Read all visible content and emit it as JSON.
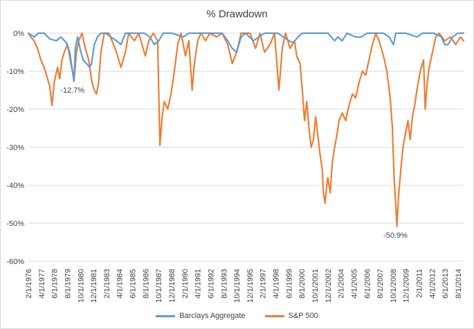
{
  "chart_data": {
    "type": "line",
    "title": "% Drawdown",
    "ylim": [
      -60,
      0
    ],
    "y_ticks": [
      "0%",
      "-10%",
      "-20%",
      "-30%",
      "-40%",
      "-50%",
      "-60%"
    ],
    "x_range": [
      1976.08,
      2015.2
    ],
    "x_tick_labels": [
      "2/1/1976",
      "4/1/1977",
      "6/1/1978",
      "8/1/1979",
      "10/1/1980",
      "12/1/1981",
      "2/1/1983",
      "4/1/1984",
      "6/1/1985",
      "8/1/1986",
      "10/1/1987",
      "12/1/1988",
      "2/1/1990",
      "4/1/1991",
      "6/1/1992",
      "8/1/1993",
      "10/1/1994",
      "12/1/1995",
      "2/1/1997",
      "4/1/1998",
      "6/1/1999",
      "8/1/2000",
      "10/1/2001",
      "12/1/2002",
      "2/1/2004",
      "4/1/2005",
      "6/1/2006",
      "8/1/2007",
      "10/1/2008",
      "12/1/2009",
      "2/1/2011",
      "4/1/2012",
      "6/1/2013",
      "8/1/2014"
    ],
    "grid": true,
    "legend_position": "bottom",
    "series": [
      {
        "name": "Barclays Aggregate",
        "color": "#5b9bd5",
        "points": [
          [
            1976.08,
            0
          ],
          [
            1976.6,
            -1
          ],
          [
            1977.0,
            0
          ],
          [
            1977.5,
            0
          ],
          [
            1978.0,
            -1.5
          ],
          [
            1978.6,
            -2
          ],
          [
            1979.0,
            -1
          ],
          [
            1979.5,
            -2.5
          ],
          [
            1979.8,
            -5
          ],
          [
            1980.0,
            -9
          ],
          [
            1980.17,
            -12.7
          ],
          [
            1980.3,
            -4
          ],
          [
            1980.5,
            -1
          ],
          [
            1980.8,
            -5
          ],
          [
            1981.0,
            -7
          ],
          [
            1981.3,
            -8
          ],
          [
            1981.6,
            -9
          ],
          [
            1981.75,
            -8
          ],
          [
            1982.0,
            -3
          ],
          [
            1982.3,
            -1
          ],
          [
            1982.6,
            0
          ],
          [
            1983.0,
            0
          ],
          [
            1983.5,
            -1
          ],
          [
            1984.0,
            -2
          ],
          [
            1984.4,
            -3
          ],
          [
            1984.8,
            0
          ],
          [
            1985.5,
            0
          ],
          [
            1986.5,
            0
          ],
          [
            1987.0,
            -1
          ],
          [
            1987.4,
            -3
          ],
          [
            1987.8,
            -2
          ],
          [
            1988.2,
            0
          ],
          [
            1989.0,
            0
          ],
          [
            1990.0,
            -1
          ],
          [
            1990.5,
            0
          ],
          [
            1991.5,
            0
          ],
          [
            1992.5,
            0
          ],
          [
            1993.5,
            0
          ],
          [
            1994.0,
            -2
          ],
          [
            1994.4,
            -4
          ],
          [
            1994.8,
            -5
          ],
          [
            1995.2,
            -1
          ],
          [
            1995.6,
            0
          ],
          [
            1996.3,
            -2
          ],
          [
            1996.8,
            -1
          ],
          [
            1997.3,
            0
          ],
          [
            1998.5,
            0
          ],
          [
            1999.0,
            -1
          ],
          [
            1999.5,
            -2
          ],
          [
            1999.9,
            -2.5
          ],
          [
            2000.3,
            -1
          ],
          [
            2000.7,
            0
          ],
          [
            2002.0,
            0
          ],
          [
            2003.0,
            0
          ],
          [
            2003.6,
            -2
          ],
          [
            2003.9,
            -1
          ],
          [
            2004.3,
            -2
          ],
          [
            2004.7,
            0
          ],
          [
            2005.5,
            -1
          ],
          [
            2006.0,
            -1
          ],
          [
            2006.5,
            0
          ],
          [
            2007.5,
            0
          ],
          [
            2008.0,
            0
          ],
          [
            2008.5,
            -1
          ],
          [
            2008.9,
            -3
          ],
          [
            2009.1,
            0
          ],
          [
            2010.0,
            0
          ],
          [
            2011.0,
            -1
          ],
          [
            2011.5,
            0
          ],
          [
            2012.5,
            0
          ],
          [
            2013.2,
            -1
          ],
          [
            2013.5,
            -3
          ],
          [
            2013.8,
            -3
          ],
          [
            2014.2,
            -1
          ],
          [
            2014.7,
            0
          ],
          [
            2015.2,
            0
          ]
        ]
      },
      {
        "name": "S&P 500",
        "color": "#ed7d31",
        "points": [
          [
            1976.08,
            0
          ],
          [
            1976.3,
            -1
          ],
          [
            1976.6,
            -2
          ],
          [
            1976.9,
            -4
          ],
          [
            1977.2,
            -7
          ],
          [
            1977.5,
            -9
          ],
          [
            1977.8,
            -12
          ],
          [
            1978.0,
            -14
          ],
          [
            1978.2,
            -19
          ],
          [
            1978.4,
            -13
          ],
          [
            1978.7,
            -9
          ],
          [
            1978.9,
            -12
          ],
          [
            1979.1,
            -7
          ],
          [
            1979.3,
            -5
          ],
          [
            1979.6,
            -3
          ],
          [
            1979.9,
            -8
          ],
          [
            1980.2,
            -12
          ],
          [
            1980.4,
            -5
          ],
          [
            1980.6,
            -2
          ],
          [
            1980.9,
            0
          ],
          [
            1981.2,
            -4
          ],
          [
            1981.5,
            -7
          ],
          [
            1981.8,
            -13
          ],
          [
            1982.0,
            -15
          ],
          [
            1982.2,
            -16
          ],
          [
            1982.4,
            -13
          ],
          [
            1982.6,
            -5
          ],
          [
            1982.9,
            0
          ],
          [
            1983.3,
            0
          ],
          [
            1983.6,
            -2
          ],
          [
            1984.0,
            -5
          ],
          [
            1984.4,
            -9
          ],
          [
            1984.8,
            -5
          ],
          [
            1985.1,
            0
          ],
          [
            1985.6,
            -2
          ],
          [
            1986.0,
            0
          ],
          [
            1986.6,
            -6
          ],
          [
            1986.9,
            -2
          ],
          [
            1987.3,
            0
          ],
          [
            1987.7,
            -2
          ],
          [
            1987.9,
            -29.5
          ],
          [
            1988.1,
            -22
          ],
          [
            1988.3,
            -18
          ],
          [
            1988.6,
            -20
          ],
          [
            1988.9,
            -16
          ],
          [
            1989.2,
            -10
          ],
          [
            1989.5,
            -3
          ],
          [
            1989.8,
            0
          ],
          [
            1990.2,
            -6
          ],
          [
            1990.5,
            -2
          ],
          [
            1990.8,
            -15
          ],
          [
            1991.0,
            -8
          ],
          [
            1991.3,
            -2
          ],
          [
            1991.6,
            0
          ],
          [
            1992.0,
            -2
          ],
          [
            1992.4,
            0
          ],
          [
            1993.0,
            -1
          ],
          [
            1993.5,
            0
          ],
          [
            1994.0,
            -3
          ],
          [
            1994.4,
            -8
          ],
          [
            1994.8,
            -5
          ],
          [
            1995.2,
            0
          ],
          [
            1996.0,
            0
          ],
          [
            1996.5,
            -4
          ],
          [
            1996.9,
            0
          ],
          [
            1997.3,
            -5
          ],
          [
            1997.8,
            -3
          ],
          [
            1998.2,
            0
          ],
          [
            1998.6,
            -15
          ],
          [
            1998.9,
            -4
          ],
          [
            1999.2,
            0
          ],
          [
            1999.6,
            -4
          ],
          [
            2000.0,
            -2
          ],
          [
            2000.2,
            -6
          ],
          [
            2000.5,
            -8
          ],
          [
            2000.7,
            -15
          ],
          [
            2000.9,
            -23
          ],
          [
            2001.1,
            -18
          ],
          [
            2001.3,
            -25
          ],
          [
            2001.5,
            -30
          ],
          [
            2001.7,
            -28
          ],
          [
            2001.9,
            -22
          ],
          [
            2002.1,
            -27
          ],
          [
            2002.3,
            -32
          ],
          [
            2002.5,
            -36
          ],
          [
            2002.6,
            -42
          ],
          [
            2002.75,
            -44.7
          ],
          [
            2002.9,
            -40
          ],
          [
            2003.0,
            -38
          ],
          [
            2003.2,
            -42
          ],
          [
            2003.4,
            -34
          ],
          [
            2003.6,
            -30
          ],
          [
            2003.8,
            -27
          ],
          [
            2004.0,
            -23
          ],
          [
            2004.3,
            -21
          ],
          [
            2004.6,
            -23
          ],
          [
            2004.9,
            -19
          ],
          [
            2005.2,
            -16
          ],
          [
            2005.5,
            -17
          ],
          [
            2005.8,
            -13
          ],
          [
            2006.1,
            -10
          ],
          [
            2006.4,
            -11
          ],
          [
            2006.7,
            -7
          ],
          [
            2007.0,
            -3
          ],
          [
            2007.3,
            0
          ],
          [
            2007.6,
            -2
          ],
          [
            2008.0,
            -6
          ],
          [
            2008.3,
            -10
          ],
          [
            2008.6,
            -17
          ],
          [
            2008.8,
            -25
          ],
          [
            2008.95,
            -38
          ],
          [
            2009.1,
            -45
          ],
          [
            2009.2,
            -50.9
          ],
          [
            2009.35,
            -43
          ],
          [
            2009.55,
            -36
          ],
          [
            2009.75,
            -30
          ],
          [
            2010.0,
            -26
          ],
          [
            2010.2,
            -23
          ],
          [
            2010.4,
            -28
          ],
          [
            2010.6,
            -22
          ],
          [
            2010.8,
            -19
          ],
          [
            2011.0,
            -15
          ],
          [
            2011.3,
            -10
          ],
          [
            2011.6,
            -7
          ],
          [
            2011.75,
            -20
          ],
          [
            2011.9,
            -14
          ],
          [
            2012.1,
            -9
          ],
          [
            2012.4,
            -5
          ],
          [
            2012.7,
            -1
          ],
          [
            2013.0,
            0
          ],
          [
            2013.5,
            -2
          ],
          [
            2014.0,
            -1
          ],
          [
            2014.5,
            -3
          ],
          [
            2014.9,
            -1
          ],
          [
            2015.2,
            -2
          ]
        ]
      }
    ],
    "annotations": [
      {
        "text": "-12.7%",
        "x": 1980.17,
        "y": -12.7
      },
      {
        "text": "-50.9%",
        "x": 2009.2,
        "y": -50.9
      }
    ]
  }
}
